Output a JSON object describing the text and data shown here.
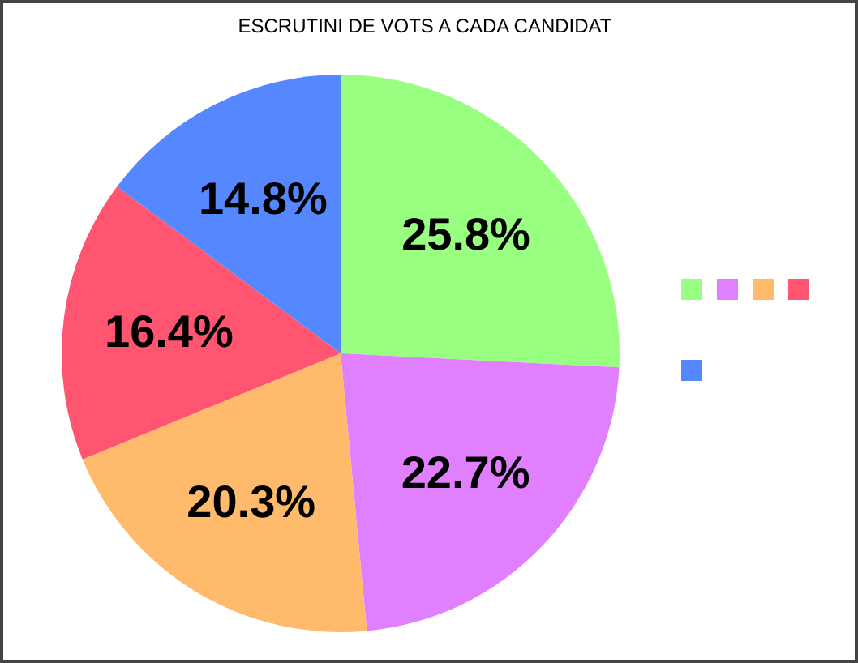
{
  "chart_data": {
    "type": "pie",
    "title": "ESCRUTINI DE VOTS A CADA CANDIDAT",
    "categories": [
      null,
      null,
      null,
      null,
      null
    ],
    "values": [
      25.8,
      22.7,
      20.3,
      16.4,
      14.8
    ],
    "colors": [
      "#99ff80",
      "#e080ff",
      "#ffbb6b",
      "#ff5570",
      "#5588ff"
    ],
    "value_labels": [
      "25.8%",
      "22.7%",
      "20.3%",
      "16.4%",
      "14.8%"
    ]
  }
}
